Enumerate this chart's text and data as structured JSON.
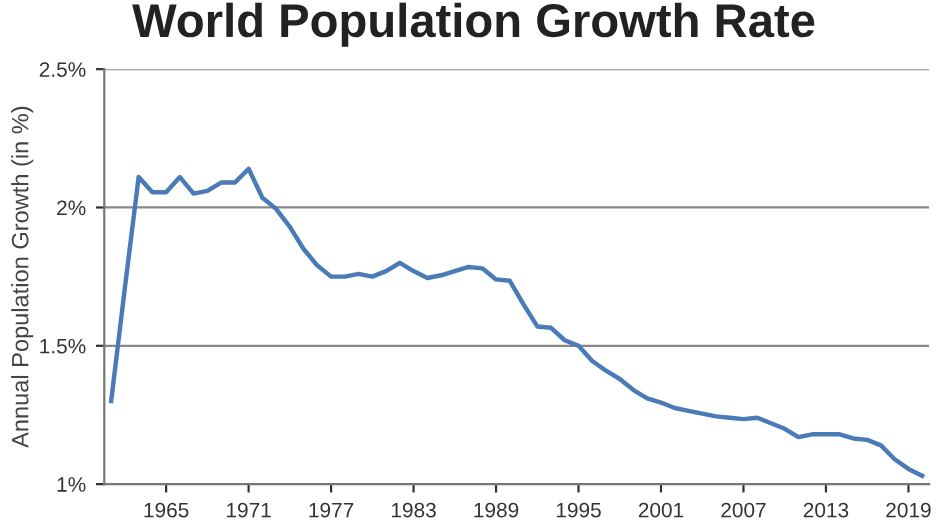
{
  "chart_data": {
    "type": "line",
    "title": "World Population Growth Rate",
    "ylabel": "Annual Population Growth (in %)",
    "x": [
      1961,
      1962,
      1963,
      1964,
      1965,
      1966,
      1967,
      1968,
      1969,
      1970,
      1971,
      1972,
      1973,
      1974,
      1975,
      1976,
      1977,
      1978,
      1979,
      1980,
      1981,
      1982,
      1983,
      1984,
      1985,
      1986,
      1987,
      1988,
      1989,
      1990,
      1991,
      1992,
      1993,
      1994,
      1995,
      1996,
      1997,
      1998,
      1999,
      2000,
      2001,
      2002,
      2003,
      2004,
      2005,
      2006,
      2007,
      2008,
      2009,
      2010,
      2011,
      2012,
      2013,
      2014,
      2015,
      2016,
      2017,
      2018,
      2019,
      2020
    ],
    "series": [
      {
        "color": "#4a7bb7",
        "values": [
          1.3,
          1.71,
          2.11,
          2.055,
          2.055,
          2.11,
          2.05,
          2.06,
          2.09,
          2.09,
          2.14,
          2.035,
          1.995,
          1.93,
          1.85,
          1.79,
          1.75,
          1.75,
          1.76,
          1.75,
          1.77,
          1.8,
          1.77,
          1.745,
          1.755,
          1.77,
          1.785,
          1.78,
          1.74,
          1.735,
          1.65,
          1.57,
          1.565,
          1.52,
          1.5,
          1.445,
          1.41,
          1.38,
          1.34,
          1.31,
          1.295,
          1.275,
          1.265,
          1.255,
          1.245,
          1.24,
          1.235,
          1.24,
          1.22,
          1.2,
          1.17,
          1.18,
          1.18,
          1.18,
          1.165,
          1.16,
          1.14,
          1.09,
          1.055,
          1.03
        ]
      }
    ],
    "xlim": [
      1960.5,
      2020.5
    ],
    "xticks": [
      1965,
      1971,
      1977,
      1983,
      1989,
      1995,
      2001,
      2007,
      2013,
      2019
    ],
    "ylim": [
      1,
      2.5
    ],
    "yticks": [
      {
        "value": 1,
        "label": "1%"
      },
      {
        "value": 1.5,
        "label": "1.5%"
      },
      {
        "value": 2,
        "label": "2%"
      },
      {
        "value": 2.5,
        "label": "2.5%"
      }
    ],
    "grid": "y",
    "legend": false,
    "marker": "none",
    "line_style": "solid"
  }
}
